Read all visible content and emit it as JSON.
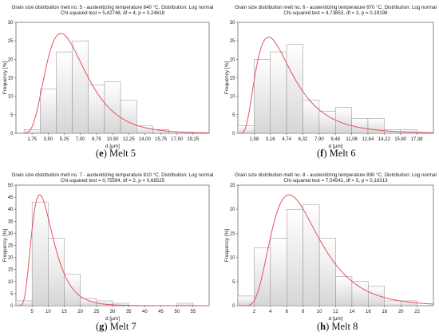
{
  "colors": {
    "bar_fill_top": "#ffffff",
    "bar_fill_bottom": "#d6d6d6",
    "bar_stroke": "#8c8c8c",
    "curve": "#e8505b",
    "axis": "#555555"
  },
  "chart_data": [
    {
      "type": "bar",
      "panel_letter": "e",
      "caption_text": "Melt 5",
      "title": "Grain size distribution melt no. 5 - austenitizing temperature 840 °C, Distribution: Log normal",
      "subtitle": "Chi-squared test = 5,42748, df = 4, p = 0,24618",
      "xlabel": "d [μm]",
      "ylabel": "Frequency [%]",
      "xlim": [
        0,
        21
      ],
      "ylim": [
        0,
        30
      ],
      "yticks": [
        0,
        5,
        10,
        15,
        20,
        25,
        30
      ],
      "xtick_values": [
        1.75,
        3.5,
        5.25,
        7.0,
        8.75,
        10.5,
        12.25,
        14.0,
        15.75,
        17.5,
        19.25
      ],
      "xtick_labels": [
        "1,75",
        "3,50",
        "5,25",
        "7,00",
        "8,75",
        "10,50",
        "12,25",
        "14,00",
        "15,75",
        "17,50",
        "19,25"
      ],
      "bin_width": 1.75,
      "bin_starts": [
        0.875,
        2.625,
        4.375,
        6.125,
        7.875,
        9.625,
        11.375,
        13.125,
        14.875,
        16.625,
        18.375,
        20.125
      ],
      "values": [
        1,
        12,
        22,
        25,
        13,
        14,
        9,
        2,
        1,
        0,
        0,
        0
      ],
      "fit": {
        "distribution": "Log normal",
        "mu": 1.78,
        "sigma": 0.44,
        "peak": 27
      }
    },
    {
      "type": "bar",
      "panel_letter": "f",
      "caption_text": "Melt 6",
      "title": "Grain size distribution melt no. 6 - austenitizing temperature 870 °C, Distribution: Log normal",
      "subtitle": "Chi-squared test = 4,73853, df = 3, p = 0,19198",
      "xlabel": "d [μm]",
      "ylabel": "Frequency [%]",
      "xlim": [
        0,
        19
      ],
      "ylim": [
        0,
        30
      ],
      "yticks": [
        0,
        5,
        10,
        15,
        20,
        25,
        30
      ],
      "xtick_values": [
        1.58,
        3.16,
        4.74,
        6.32,
        7.9,
        9.48,
        11.06,
        12.64,
        14.22,
        15.8,
        17.38
      ],
      "xtick_labels": [
        "1,58",
        "3,16",
        "4,74",
        "6,32",
        "7,90",
        "9,48",
        "11,06",
        "12,64",
        "14,22",
        "15,80",
        "17,38"
      ],
      "bin_width": 1.58,
      "bin_starts": [
        0.0,
        1.58,
        3.16,
        4.74,
        6.32,
        7.9,
        9.48,
        11.06,
        12.64,
        14.22,
        15.8,
        17.38
      ],
      "values": [
        2,
        20,
        22,
        24,
        9,
        6,
        7,
        4,
        4,
        1,
        1,
        0
      ],
      "fit": {
        "distribution": "Log normal",
        "mu": 1.43,
        "sigma": 0.58,
        "peak": 26
      }
    },
    {
      "type": "bar",
      "panel_letter": "g",
      "caption_text": "Melt 7",
      "title": "Grain size distribution melt no. 7 - austenitizing temperature 810 °C, Distribution: Log normal",
      "subtitle": "Chi-squared test = 0,75594, df = 2, p = 0,68525",
      "xlabel": "d [μm]",
      "ylabel": "Frequency [%]",
      "xlim": [
        0,
        60
      ],
      "ylim": [
        0,
        50
      ],
      "yticks": [
        0,
        5,
        10,
        15,
        20,
        25,
        30,
        35,
        40,
        45,
        50
      ],
      "xtick_values": [
        5,
        10,
        15,
        20,
        25,
        30,
        35,
        40,
        45,
        50,
        55
      ],
      "xtick_labels": [
        "5",
        "10",
        "15",
        "20",
        "25",
        "30",
        "35",
        "40",
        "45",
        "50",
        "55"
      ],
      "bin_width": 5,
      "bin_starts": [
        0,
        5,
        10,
        15,
        20,
        25,
        30,
        35,
        40,
        45,
        50,
        55
      ],
      "values": [
        2,
        43,
        28,
        13,
        3,
        2,
        1,
        0,
        0,
        0,
        1,
        0
      ],
      "fit": {
        "distribution": "Log normal",
        "mu": 2.2,
        "sigma": 0.45,
        "peak": 46
      }
    },
    {
      "type": "bar",
      "panel_letter": "h",
      "caption_text": "Melt 8",
      "title": "Grain size distribution melt no. 8 - austenitizing temperature 890 °C, Distribution: Log normal",
      "subtitle": "Chi-squared test = 7,54541, df = 5, p = 0,18313",
      "xlabel": "d [μm]",
      "ylabel": "Frequency [%]",
      "xlim": [
        0,
        24
      ],
      "ylim": [
        0,
        25
      ],
      "yticks": [
        0,
        5,
        10,
        15,
        20,
        25
      ],
      "xtick_values": [
        2,
        4,
        6,
        8,
        10,
        12,
        14,
        16,
        18,
        20,
        22
      ],
      "xtick_labels": [
        "2",
        "4",
        "6",
        "8",
        "10",
        "12",
        "14",
        "16",
        "18",
        "20",
        "22"
      ],
      "bin_width": 2,
      "bin_starts": [
        0,
        2,
        4,
        6,
        8,
        10,
        12,
        14,
        16,
        18,
        20,
        22
      ],
      "values": [
        2,
        12,
        14,
        20,
        21,
        14,
        6,
        5,
        4,
        1,
        1,
        0
      ],
      "fit": {
        "distribution": "Log normal",
        "mu": 2.05,
        "sigma": 0.46,
        "peak": 23
      }
    }
  ]
}
